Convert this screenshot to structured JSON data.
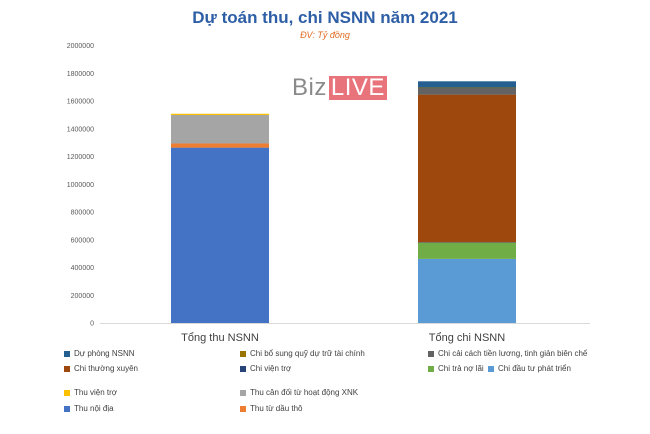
{
  "chart_data": {
    "type": "bar",
    "stacked": true,
    "title": "Dự toán thu, chi NSNN năm 2021",
    "subtitle": "ĐV: Tỷ đồng",
    "xlabel": "",
    "ylabel": "",
    "ylim": [
      0,
      2000000
    ],
    "yticks": [
      0,
      200000,
      400000,
      600000,
      800000,
      1000000,
      1200000,
      1400000,
      1600000,
      1800000,
      2000000
    ],
    "ytick_labels": [
      "0",
      "200000",
      "400000",
      "600000",
      "800000",
      "1000000",
      "1200000",
      "1400000",
      "1600000",
      "1800000",
      "2000000"
    ],
    "grid": false,
    "legend_position": "bottom",
    "categories": [
      "Tổng thu NSNN",
      "Tổng chi NSNN"
    ],
    "series": [
      {
        "name": "Thu nội địa",
        "color": "#4472c4",
        "values": [
          1264000,
          0
        ]
      },
      {
        "name": "Thu từ dầu thô",
        "color": "#ed7d31",
        "values": [
          30000,
          0
        ]
      },
      {
        "name": "Thu cân đối từ hoạt động XNK",
        "color": "#a5a5a5",
        "values": [
          205000,
          0
        ]
      },
      {
        "name": "Thu viện trợ",
        "color": "#ffc000",
        "values": [
          9000,
          0
        ]
      },
      {
        "name": "Chi đầu tư phát triển",
        "color": "#5b9bd5",
        "values": [
          0,
          462000
        ]
      },
      {
        "name": "Chi trả nợ lãi",
        "color": "#70ad47",
        "values": [
          0,
          118000
        ]
      },
      {
        "name": "Chi viện trợ",
        "color": "#264478",
        "values": [
          0,
          2000
        ]
      },
      {
        "name": "Chi thường xuyên",
        "color": "#9e480e",
        "values": [
          0,
          1064000
        ]
      },
      {
        "name": "Chi cải cách tiền lương, tinh giản biên chế",
        "color": "#636363",
        "values": [
          0,
          50000
        ]
      },
      {
        "name": "Chi bổ sung quỹ dự trữ tài chính",
        "color": "#997300",
        "values": [
          0,
          1000
        ]
      },
      {
        "name": "Dự phòng NSNN",
        "color": "#255e91",
        "values": [
          0,
          45000
        ]
      }
    ]
  },
  "watermark": {
    "left": "Biz",
    "right": "LIVE"
  },
  "legend_layout": [
    {
      "series": "Dự phòng NSNN",
      "row": 0,
      "col": 0
    },
    {
      "series": "Chi bổ sung quỹ dự trữ tài chính",
      "row": 0,
      "col": 1
    },
    {
      "series": "Chi cải cách tiền lương, tinh giản biên chế",
      "row": 0,
      "col": 2
    },
    {
      "series": "Chi thường xuyên",
      "row": 1,
      "col": 0
    },
    {
      "series": "Chi viện trợ",
      "row": 1,
      "col": 1
    },
    {
      "series": "Chi trả nợ lãi",
      "row": 1,
      "col": 2
    },
    {
      "series": "Chi đầu tư phát triển",
      "row": 1,
      "col": 3
    },
    {
      "series": "Thu viện trợ",
      "row": 2,
      "col": 0
    },
    {
      "series": "Thu cân đối từ hoạt động XNK",
      "row": 2,
      "col": 1
    },
    {
      "series": "Thu nội địa",
      "row": 3,
      "col": 0
    },
    {
      "series": "Thu từ dầu thô",
      "row": 3,
      "col": 1
    }
  ]
}
